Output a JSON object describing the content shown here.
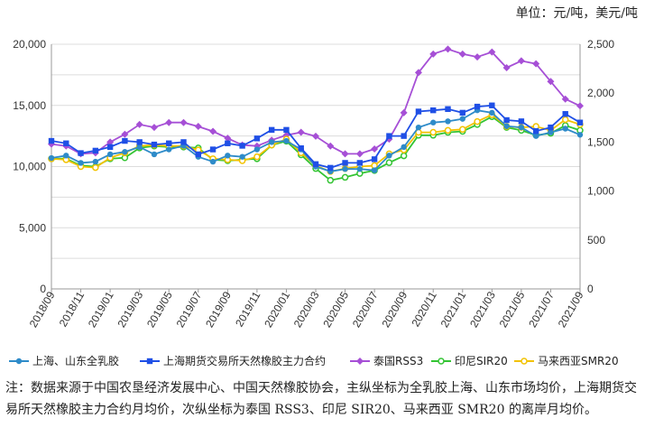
{
  "unit_label": "单位：元/吨，美元/吨",
  "note": "注：数据来源于中国农垦经济发展中心、中国天然橡胶协会，主纵坐标为全乳胶上海、山东市场均价，上海期货交易所天然橡胶主力合约月均价，次纵坐标为泰国 RSS3、印尼 SIR20、马来西亚 SMR20 的离岸月均价。",
  "chart_data": {
    "type": "line",
    "x": [
      "2018/09",
      "2018/10",
      "2018/11",
      "2018/12",
      "2019/01",
      "2019/02",
      "2019/03",
      "2019/04",
      "2019/05",
      "2019/06",
      "2019/07",
      "2019/08",
      "2019/09",
      "2019/10",
      "2019/11",
      "2019/12",
      "2020/01",
      "2020/02",
      "2020/03",
      "2020/04",
      "2020/05",
      "2020/06",
      "2020/07",
      "2020/08",
      "2020/09",
      "2020/10",
      "2020/11",
      "2020/12",
      "2021/01",
      "2021/02",
      "2021/03",
      "2021/04",
      "2021/05",
      "2021/06",
      "2021/07",
      "2021/08",
      "2021/09"
    ],
    "x_tick_labels": [
      "2018/09",
      "2018/11",
      "2019/01",
      "2019/03",
      "2019/05",
      "2019/07",
      "2019/09",
      "2019/11",
      "2020/01",
      "2020/03",
      "2020/05",
      "2020/07",
      "2020/09",
      "2020/11",
      "2021/01",
      "2021/03",
      "2021/05",
      "2021/07",
      "2021/09"
    ],
    "ylim": [
      0,
      20000
    ],
    "yticks": [
      "0",
      "5,000",
      "10,000",
      "15,000",
      "20,000"
    ],
    "y2lim": [
      0,
      2500
    ],
    "y2ticks": [
      "0",
      "500",
      "1,000",
      "1,500",
      "2,000",
      "2,500"
    ],
    "series": [
      {
        "name": "上海、山东全乳胶",
        "axis": "left",
        "color": "#2e8bc9",
        "marker": "circle",
        "values": [
          10700,
          10900,
          10300,
          10400,
          11000,
          11200,
          11600,
          11000,
          11400,
          11700,
          10800,
          10400,
          10900,
          10800,
          11400,
          12000,
          12100,
          11400,
          10000,
          9600,
          9800,
          9800,
          9700,
          10900,
          11600,
          13200,
          13600,
          13700,
          13900,
          14600,
          14400,
          13300,
          13200,
          12500,
          12800,
          13100,
          12600
        ]
      },
      {
        "name": "上海期货交易所天然橡胶主力合约",
        "axis": "left",
        "color": "#1f4fe6",
        "marker": "square",
        "values": [
          12100,
          11900,
          11100,
          11300,
          11600,
          12100,
          12000,
          11800,
          11900,
          12000,
          11000,
          11400,
          11900,
          11700,
          12300,
          13000,
          13000,
          11500,
          10200,
          9900,
          10300,
          10300,
          10600,
          12500,
          12500,
          14500,
          14600,
          14700,
          14400,
          14900,
          15000,
          13800,
          13700,
          12900,
          13200,
          14300,
          13600
        ]
      },
      {
        "name": "泰国RSS3",
        "axis": "right",
        "color": "#a64fd6",
        "marker": "diamond",
        "values": [
          1480,
          1460,
          1380,
          1390,
          1500,
          1580,
          1680,
          1650,
          1700,
          1700,
          1660,
          1610,
          1540,
          1470,
          1460,
          1520,
          1570,
          1600,
          1560,
          1460,
          1380,
          1380,
          1430,
          1530,
          1800,
          2210,
          2400,
          2450,
          2400,
          2370,
          2420,
          2260,
          2330,
          2300,
          2120,
          1940,
          1870
        ]
      },
      {
        "name": "印尼SIR20",
        "axis": "right",
        "color": "#33c433",
        "marker": "circle-open",
        "values": [
          1330,
          1330,
          1260,
          1250,
          1330,
          1340,
          1440,
          1460,
          1450,
          1450,
          1440,
          1320,
          1310,
          1320,
          1330,
          1470,
          1510,
          1370,
          1230,
          1110,
          1140,
          1180,
          1210,
          1290,
          1360,
          1570,
          1570,
          1600,
          1610,
          1680,
          1760,
          1650,
          1620,
          1570,
          1590,
          1670,
          1620
        ]
      },
      {
        "name": "马来西亚SMR20",
        "axis": "right",
        "color": "#f2c200",
        "marker": "circle-open",
        "values": [
          1330,
          1320,
          1250,
          1240,
          1340,
          1390,
          1460,
          1470,
          1460,
          1460,
          1420,
          1330,
          1320,
          1310,
          1350,
          1470,
          1530,
          1390,
          1260,
          1200,
          1230,
          1250,
          1260,
          1380,
          1420,
          1600,
          1600,
          1620,
          1630,
          1710,
          1780,
          1660,
          1650,
          1660,
          1620,
          1730,
          1680
        ]
      }
    ]
  }
}
